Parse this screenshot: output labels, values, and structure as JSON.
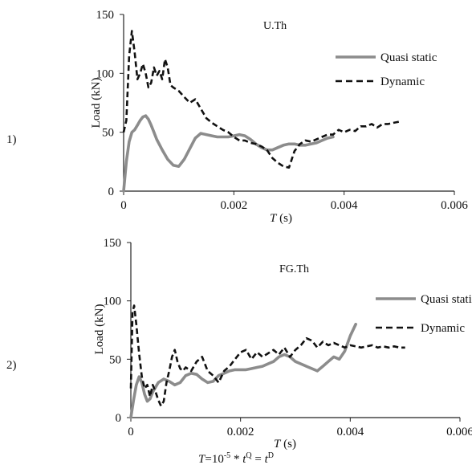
{
  "figure": {
    "formula": {
      "T": "T",
      "eq1": "=10",
      "exp": "-5",
      "mult": " * ",
      "t1": "t",
      "supQ": "Q",
      "eq2": " = ",
      "t2": "t",
      "supD": "D"
    }
  },
  "colors": {
    "quasi": "#8c8c8c",
    "dynamic": "#111111",
    "axis": "#222222"
  },
  "chart_data": [
    {
      "type": "line",
      "panel_label": "1)",
      "title": "U.Th",
      "xlabel_main": "T",
      "xlabel_unit": " (s)",
      "ylabel": "Load (kN)",
      "xlim": [
        0,
        0.006
      ],
      "ylim": [
        0,
        150
      ],
      "xticks": [
        "0",
        "0.002",
        "0.004",
        "0.006"
      ],
      "xtick_values": [
        0,
        0.002,
        0.004,
        0.006
      ],
      "yticks": [
        "0",
        "50",
        "100",
        "150"
      ],
      "ytick_values": [
        0,
        50,
        100,
        150
      ],
      "grid": false,
      "legend_position": "top-right",
      "series": [
        {
          "name": "Quasi static",
          "style": "solid",
          "x": [
            0,
            5e-05,
            0.0001,
            0.00015,
            0.0002,
            0.00025,
            0.0003,
            0.00035,
            0.0004,
            0.00045,
            0.0005,
            0.00055,
            0.0006,
            0.0007,
            0.0008,
            0.0009,
            0.001,
            0.0011,
            0.0012,
            0.0013,
            0.0014,
            0.0015,
            0.0016,
            0.0017,
            0.0018,
            0.0019,
            0.002,
            0.0021,
            0.0022,
            0.0023,
            0.0024,
            0.0025,
            0.0026,
            0.0027,
            0.0028,
            0.0029,
            0.003,
            0.0031,
            0.0032,
            0.0033,
            0.0034,
            0.0035,
            0.0036,
            0.0037,
            0.0038
          ],
          "y": [
            0,
            25,
            42,
            50,
            52,
            56,
            60,
            63,
            64,
            61,
            56,
            50,
            44,
            35,
            27,
            22,
            21,
            27,
            36,
            45,
            49,
            48,
            47,
            46,
            46,
            46,
            47,
            48,
            47,
            44,
            40,
            37,
            35,
            35,
            37,
            39,
            40,
            40,
            39,
            39,
            40,
            41,
            43,
            45,
            46
          ]
        },
        {
          "name": "Dynamic",
          "style": "dashed",
          "x": [
            0,
            5e-05,
            0.0001,
            0.00015,
            0.0002,
            0.00025,
            0.0003,
            0.00035,
            0.0004,
            0.00045,
            0.0005,
            0.00055,
            0.0006,
            0.00065,
            0.0007,
            0.00075,
            0.0008,
            0.00085,
            0.0009,
            0.001,
            0.0011,
            0.0012,
            0.0013,
            0.0014,
            0.0015,
            0.0016,
            0.0017,
            0.0018,
            0.0019,
            0.002,
            0.0021,
            0.0022,
            0.0023,
            0.0024,
            0.0025,
            0.0026,
            0.0027,
            0.0028,
            0.0029,
            0.003,
            0.0031,
            0.0032,
            0.0033,
            0.0034,
            0.0035,
            0.0036,
            0.0037,
            0.0038,
            0.0039,
            0.004,
            0.0041,
            0.0042,
            0.0043,
            0.0044,
            0.0045,
            0.0046,
            0.0047,
            0.0048,
            0.0049,
            0.005
          ],
          "y": [
            50,
            60,
            115,
            136,
            118,
            95,
            100,
            108,
            100,
            88,
            92,
            105,
            98,
            102,
            95,
            112,
            105,
            90,
            88,
            85,
            80,
            75,
            78,
            70,
            62,
            58,
            55,
            52,
            50,
            46,
            43,
            43,
            41,
            40,
            38,
            35,
            28,
            24,
            21,
            20,
            34,
            40,
            43,
            42,
            44,
            46,
            48,
            48,
            52,
            50,
            52,
            51,
            55,
            55,
            57,
            54,
            57,
            57,
            58,
            59
          ]
        }
      ]
    },
    {
      "type": "line",
      "panel_label": "2)",
      "title": "FG.Th",
      "xlabel_main": "T",
      "xlabel_unit": " (s)",
      "ylabel": "Load (kN)",
      "xlim": [
        0,
        0.006
      ],
      "ylim": [
        0,
        150
      ],
      "xticks": [
        "0",
        "0.002",
        "0.004",
        "0.006"
      ],
      "xtick_values": [
        0,
        0.002,
        0.004,
        0.006
      ],
      "yticks": [
        "0",
        "50",
        "100",
        "150"
      ],
      "ytick_values": [
        0,
        50,
        100,
        150
      ],
      "grid": false,
      "legend_position": "top-right",
      "series": [
        {
          "name": "Quasi static",
          "style": "solid",
          "x": [
            0,
            5e-05,
            0.0001,
            0.00015,
            0.0002,
            0.00025,
            0.0003,
            0.00035,
            0.0004,
            0.00045,
            0.0005,
            0.0006,
            0.0007,
            0.0008,
            0.0009,
            0.001,
            0.0011,
            0.0012,
            0.0013,
            0.0014,
            0.0015,
            0.0016,
            0.0017,
            0.0018,
            0.0019,
            0.002,
            0.0021,
            0.0022,
            0.0023,
            0.0024,
            0.0025,
            0.0026,
            0.0027,
            0.0028,
            0.0029,
            0.003,
            0.0031,
            0.0032,
            0.0033,
            0.0034,
            0.0035,
            0.0036,
            0.0037,
            0.0038,
            0.0039,
            0.004,
            0.0041
          ],
          "y": [
            0,
            15,
            28,
            35,
            30,
            20,
            14,
            16,
            22,
            26,
            30,
            33,
            31,
            28,
            30,
            36,
            38,
            37,
            33,
            30,
            31,
            36,
            38,
            40,
            41,
            41,
            41,
            42,
            43,
            44,
            46,
            48,
            52,
            54,
            52,
            48,
            46,
            44,
            42,
            40,
            44,
            48,
            52,
            50,
            57,
            70,
            80
          ]
        },
        {
          "name": "Dynamic",
          "style": "dashed",
          "x": [
            0,
            3e-05,
            6e-05,
            0.0001,
            0.00015,
            0.0002,
            0.00025,
            0.0003,
            0.00035,
            0.0004,
            0.00045,
            0.0005,
            0.00055,
            0.0006,
            0.00065,
            0.0007,
            0.00075,
            0.0008,
            0.00085,
            0.0009,
            0.00095,
            0.001,
            0.0011,
            0.0012,
            0.0013,
            0.0014,
            0.0015,
            0.0016,
            0.0017,
            0.0018,
            0.0019,
            0.002,
            0.0021,
            0.0022,
            0.0023,
            0.0024,
            0.0025,
            0.0026,
            0.0027,
            0.0028,
            0.0029,
            0.003,
            0.0031,
            0.0032,
            0.0033,
            0.0034,
            0.0035,
            0.0036,
            0.0037,
            0.0038,
            0.0039,
            0.004,
            0.0041,
            0.0042,
            0.0043,
            0.0044,
            0.0045,
            0.0046,
            0.0047,
            0.0048,
            0.0049,
            0.005
          ],
          "y": [
            25,
            90,
            96,
            80,
            55,
            35,
            25,
            28,
            18,
            28,
            22,
            15,
            10,
            14,
            30,
            40,
            52,
            58,
            48,
            42,
            40,
            43,
            40,
            48,
            52,
            40,
            36,
            30,
            40,
            44,
            50,
            56,
            58,
            50,
            56,
            52,
            55,
            58,
            54,
            60,
            52,
            58,
            62,
            68,
            66,
            60,
            65,
            62,
            64,
            62,
            60,
            62,
            61,
            60,
            61,
            62,
            60,
            61,
            60,
            61,
            60,
            60
          ]
        }
      ]
    }
  ]
}
